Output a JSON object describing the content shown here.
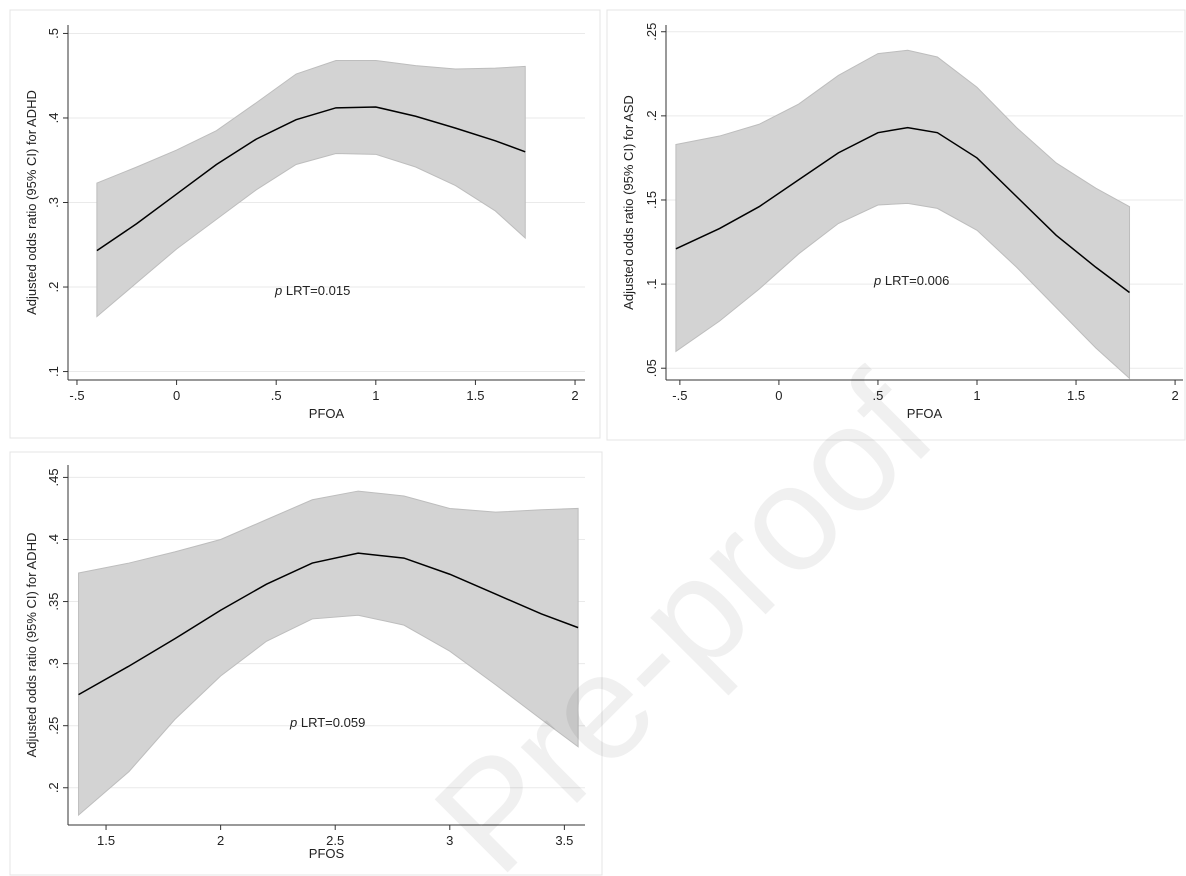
{
  "watermark": "Pre-proof",
  "chart_data": [
    {
      "type": "line",
      "ylabel": "Adjusted odds ratio (95% CI) for ADHD",
      "xlabel": "PFOA",
      "annotation_italic": "p",
      "annotation": "LRT=0.015",
      "x": [
        -0.4,
        -0.2,
        0,
        0.2,
        0.4,
        0.6,
        0.8,
        1.0,
        1.2,
        1.4,
        1.6,
        1.75
      ],
      "values": [
        0.243,
        0.275,
        0.31,
        0.345,
        0.375,
        0.398,
        0.412,
        0.413,
        0.402,
        0.388,
        0.373,
        0.36
      ],
      "upper": [
        0.323,
        0.342,
        0.362,
        0.385,
        0.418,
        0.452,
        0.468,
        0.468,
        0.462,
        0.458,
        0.459,
        0.461
      ],
      "lower": [
        0.165,
        0.205,
        0.245,
        0.28,
        0.315,
        0.345,
        0.358,
        0.357,
        0.342,
        0.32,
        0.29,
        0.258
      ],
      "color": "#000000",
      "band_color": "#d3d3d3",
      "xlim": [
        -0.545,
        2.05
      ],
      "ylim": [
        0.09,
        0.51
      ],
      "xticks": [
        {
          "value": -0.5,
          "label": "-.5"
        },
        0,
        {
          "value": 0.5,
          "label": ".5"
        },
        1,
        1.5,
        2
      ],
      "yticks": [
        {
          "value": 0.1,
          "label": ".1"
        },
        {
          "value": 0.2,
          "label": ".2"
        },
        {
          "value": 0.3,
          "label": ".3"
        },
        {
          "value": 0.4,
          "label": ".4"
        },
        {
          "value": 0.5,
          "label": ".5"
        }
      ],
      "grid": true
    },
    {
      "type": "line",
      "ylabel": "Adjusted odds ratio (95% CI) for ASD",
      "xlabel": "PFOA",
      "annotation_italic": "p",
      "annotation": "LRT=0.006",
      "x": [
        -0.52,
        -0.3,
        -0.1,
        0.1,
        0.3,
        0.5,
        0.65,
        0.8,
        1.0,
        1.2,
        1.4,
        1.6,
        1.77
      ],
      "values": [
        0.121,
        0.133,
        0.146,
        0.162,
        0.178,
        0.19,
        0.193,
        0.19,
        0.175,
        0.152,
        0.129,
        0.11,
        0.095
      ],
      "upper": [
        0.183,
        0.188,
        0.195,
        0.207,
        0.224,
        0.237,
        0.239,
        0.235,
        0.217,
        0.193,
        0.172,
        0.157,
        0.146
      ],
      "lower": [
        0.06,
        0.078,
        0.097,
        0.118,
        0.136,
        0.147,
        0.148,
        0.145,
        0.132,
        0.11,
        0.086,
        0.062,
        0.044
      ],
      "color": "#000000",
      "band_color": "#d3d3d3",
      "xlim": [
        -0.57,
        2.04
      ],
      "ylim": [
        0.043,
        0.254
      ],
      "xticks": [
        {
          "value": -0.5,
          "label": "-.5"
        },
        0,
        {
          "value": 0.5,
          "label": ".5"
        },
        1,
        1.5,
        2
      ],
      "yticks": [
        {
          "value": 0.05,
          "label": ".05"
        },
        {
          "value": 0.1,
          "label": ".1"
        },
        {
          "value": 0.15,
          "label": ".15"
        },
        {
          "value": 0.2,
          "label": ".2"
        },
        {
          "value": 0.25,
          "label": ".25"
        }
      ],
      "grid": true
    },
    {
      "type": "line",
      "ylabel": "Adjusted odds ratio (95% CI) for ADHD",
      "xlabel": "PFOS",
      "annotation_italic": "p",
      "annotation": "LRT=0.059",
      "x": [
        1.38,
        1.6,
        1.8,
        2.0,
        2.2,
        2.4,
        2.6,
        2.8,
        3.0,
        3.2,
        3.4,
        3.56
      ],
      "values": [
        0.275,
        0.298,
        0.32,
        0.343,
        0.364,
        0.381,
        0.389,
        0.385,
        0.372,
        0.356,
        0.34,
        0.329
      ],
      "upper": [
        0.373,
        0.381,
        0.39,
        0.4,
        0.416,
        0.432,
        0.439,
        0.435,
        0.425,
        0.422,
        0.424,
        0.425
      ],
      "lower": [
        0.178,
        0.213,
        0.255,
        0.29,
        0.318,
        0.336,
        0.339,
        0.331,
        0.31,
        0.283,
        0.255,
        0.233
      ],
      "color": "#000000",
      "band_color": "#d3d3d3",
      "xlim": [
        1.334,
        3.59
      ],
      "ylim": [
        0.17,
        0.46
      ],
      "xticks": [
        1.5,
        2,
        2.5,
        3,
        3.5
      ],
      "yticks": [
        {
          "value": 0.2,
          "label": ".2"
        },
        {
          "value": 0.25,
          "label": ".25"
        },
        {
          "value": 0.3,
          "label": ".3"
        },
        {
          "value": 0.35,
          "label": ".35"
        },
        {
          "value": 0.4,
          "label": ".4"
        },
        {
          "value": 0.45,
          "label": ".45"
        }
      ],
      "grid": true
    }
  ]
}
